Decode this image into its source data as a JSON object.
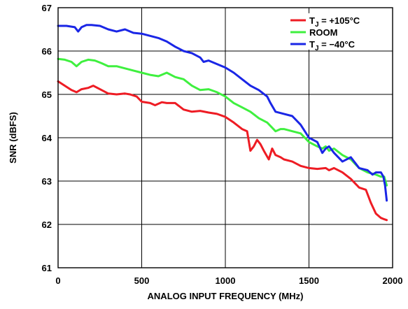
{
  "chart_data": {
    "type": "line",
    "title": "",
    "xlabel": "ANALOG INPUT FREQUENCY (MHz)",
    "ylabel": "SNR (dBFS)",
    "xlim": [
      0,
      2000
    ],
    "ylim": [
      61,
      67
    ],
    "xticks": [
      0,
      500,
      1000,
      1500,
      2000
    ],
    "yticks": [
      61,
      62,
      63,
      64,
      65,
      66,
      67
    ],
    "grid": true,
    "legend_position": "top-right",
    "series": [
      {
        "name": "T_J = +105°C",
        "legend": {
          "base": "T",
          "sub": "J",
          "rest": " = +105°C"
        },
        "color": "#ee1c24",
        "x": [
          0,
          40,
          80,
          110,
          140,
          180,
          210,
          250,
          300,
          350,
          400,
          430,
          470,
          500,
          550,
          580,
          620,
          650,
          700,
          750,
          800,
          850,
          900,
          950,
          1000,
          1050,
          1100,
          1130,
          1150,
          1170,
          1190,
          1210,
          1230,
          1260,
          1280,
          1300,
          1330,
          1350,
          1400,
          1450,
          1500,
          1550,
          1600,
          1620,
          1650,
          1700,
          1750,
          1800,
          1840,
          1870,
          1900,
          1930,
          1950,
          1965
        ],
        "y": [
          65.3,
          65.2,
          65.1,
          65.05,
          65.12,
          65.15,
          65.2,
          65.12,
          65.02,
          65.0,
          65.02,
          65.0,
          64.95,
          64.83,
          64.8,
          64.75,
          64.82,
          64.8,
          64.8,
          64.65,
          64.6,
          64.62,
          64.58,
          64.55,
          64.48,
          64.35,
          64.2,
          64.15,
          63.7,
          63.8,
          63.95,
          63.85,
          63.7,
          63.5,
          63.75,
          63.6,
          63.55,
          63.5,
          63.45,
          63.35,
          63.3,
          63.28,
          63.3,
          63.25,
          63.3,
          63.2,
          63.05,
          62.85,
          62.8,
          62.5,
          62.25,
          62.15,
          62.12,
          62.1
        ]
      },
      {
        "name": "ROOM",
        "legend": {
          "base": "ROOM",
          "sub": "",
          "rest": ""
        },
        "color": "#3ff03f",
        "x": [
          0,
          40,
          80,
          110,
          140,
          180,
          220,
          260,
          300,
          350,
          400,
          450,
          500,
          550,
          600,
          650,
          700,
          750,
          800,
          850,
          900,
          950,
          1000,
          1050,
          1100,
          1150,
          1200,
          1250,
          1300,
          1330,
          1350,
          1400,
          1450,
          1500,
          1550,
          1580,
          1600,
          1620,
          1650,
          1700,
          1750,
          1800,
          1850,
          1900,
          1930,
          1950,
          1965
        ],
        "y": [
          65.82,
          65.8,
          65.75,
          65.65,
          65.75,
          65.8,
          65.78,
          65.72,
          65.65,
          65.65,
          65.6,
          65.55,
          65.5,
          65.45,
          65.42,
          65.5,
          65.4,
          65.35,
          65.2,
          65.1,
          65.12,
          65.05,
          64.95,
          64.8,
          64.7,
          64.6,
          64.45,
          64.35,
          64.15,
          64.2,
          64.2,
          64.15,
          64.1,
          63.9,
          63.8,
          63.75,
          63.8,
          63.7,
          63.75,
          63.6,
          63.5,
          63.3,
          63.2,
          63.15,
          63.1,
          63.1,
          62.9
        ]
      },
      {
        "name": "T_J = −40°C",
        "legend": {
          "base": "T",
          "sub": "J",
          "rest": " = −40°C"
        },
        "color": "#1a26e6",
        "x": [
          0,
          50,
          100,
          120,
          140,
          170,
          200,
          250,
          300,
          350,
          400,
          450,
          500,
          550,
          600,
          650,
          700,
          750,
          800,
          850,
          870,
          900,
          950,
          1000,
          1050,
          1100,
          1150,
          1200,
          1250,
          1270,
          1300,
          1350,
          1400,
          1450,
          1500,
          1550,
          1580,
          1600,
          1620,
          1650,
          1700,
          1750,
          1800,
          1850,
          1880,
          1900,
          1930,
          1945,
          1955,
          1965
        ],
        "y": [
          66.58,
          66.58,
          66.55,
          66.45,
          66.55,
          66.6,
          66.6,
          66.58,
          66.5,
          66.45,
          66.5,
          66.42,
          66.4,
          66.35,
          66.3,
          66.22,
          66.1,
          66.0,
          65.95,
          65.85,
          65.75,
          65.78,
          65.7,
          65.62,
          65.5,
          65.35,
          65.2,
          65.1,
          64.95,
          64.8,
          64.6,
          64.55,
          64.5,
          64.3,
          64.0,
          63.9,
          63.65,
          63.75,
          63.8,
          63.65,
          63.45,
          63.55,
          63.3,
          63.25,
          63.15,
          63.2,
          63.2,
          63.1,
          62.9,
          62.55
        ]
      }
    ]
  }
}
